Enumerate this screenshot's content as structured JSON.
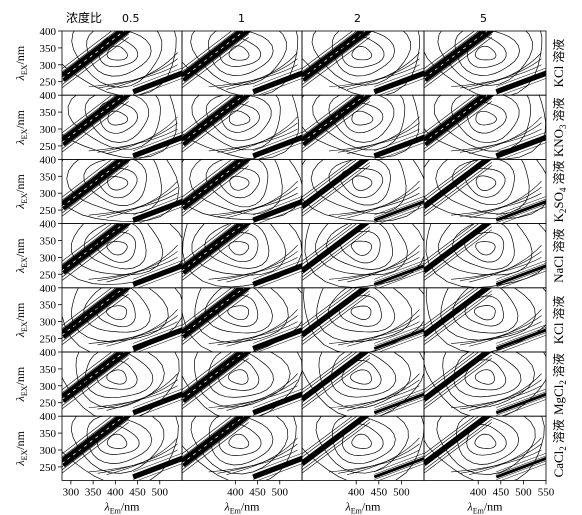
{
  "header": {
    "ratio_label": "浓度比"
  },
  "columns": [
    "0.5",
    "1",
    "2",
    "5"
  ],
  "rows": [
    {
      "salt": "KCl",
      "sub": "",
      "suffix": "",
      "word": "溶液"
    },
    {
      "salt": "KNO",
      "sub": "3",
      "suffix": "",
      "word": "溶液"
    },
    {
      "salt": "K",
      "sub": "2",
      "suffix": "SO",
      "sub2": "4",
      "word": "溶液"
    },
    {
      "salt": "NaCl",
      "sub": "",
      "suffix": "",
      "word": "溶液"
    },
    {
      "salt": "KCl",
      "sub": "",
      "suffix": "",
      "word": "溶液"
    },
    {
      "salt": "MgCl",
      "sub": "2",
      "suffix": "",
      "word": "溶液"
    },
    {
      "salt": "CaCl",
      "sub": "2",
      "suffix": "",
      "word": "溶液"
    }
  ],
  "axes": {
    "y_label_main": "λ",
    "y_label_sub": "EX",
    "y_label_unit": "/nm",
    "x_label_main": "λ",
    "x_label_sub": "Em",
    "x_label_unit": "/nm",
    "y_ticks": [
      "400",
      "350",
      "300",
      "250"
    ],
    "x_ticks_first": [
      "300",
      "350",
      "400",
      "450",
      "500"
    ],
    "x_ticks_mid": [
      "400",
      "450",
      "500"
    ],
    "x_ticks_last": [
      "400",
      "450",
      "500",
      "550"
    ]
  },
  "chart_data": {
    "type": "contour",
    "grid": {
      "rows": 7,
      "columns": 4
    },
    "x_axis": {
      "label": "λEm/nm",
      "range": [
        280,
        550
      ]
    },
    "y_axis": {
      "label": "λEX/nm",
      "range": [
        210,
        400
      ],
      "ticks": [
        250,
        300,
        350,
        400
      ]
    },
    "column_values": [
      "0.5",
      "1",
      "2",
      "5"
    ],
    "row_solutions": [
      "KCl 溶液",
      "KNO3 溶液",
      "K2SO4 溶液",
      "NaCl 溶液",
      "KCl 溶液",
      "MgCl2 溶液",
      "CaCl2 溶液"
    ]
  }
}
